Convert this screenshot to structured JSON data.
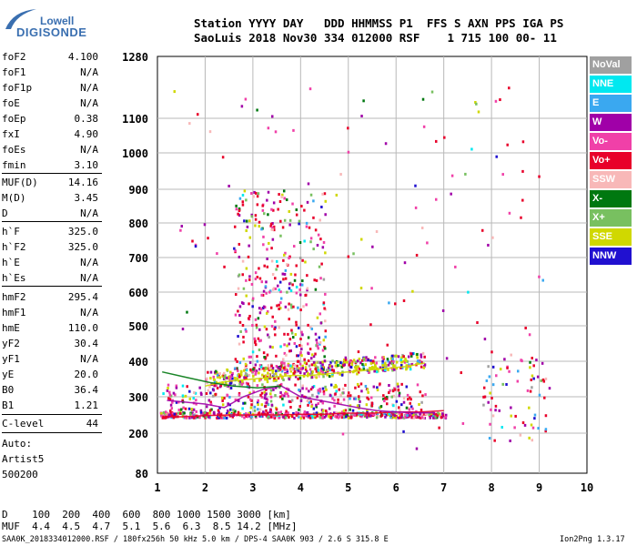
{
  "logo": {
    "line1": "Lowell",
    "line2": "DIGISONDE"
  },
  "header": {
    "line1": "Station YYYY DAY   DDD HHMMSS P1  FFS S AXN PPS IGA PS",
    "line2": "SaoLuis 2018 Nov30 334 012000 RSF    1 715 100 00- 11"
  },
  "params": {
    "group1": [
      {
        "label": "foF2",
        "value": "4.100"
      },
      {
        "label": "foF1",
        "value": "N/A"
      },
      {
        "label": "foF1p",
        "value": "N/A"
      },
      {
        "label": "foE",
        "value": "N/A"
      },
      {
        "label": "foEp",
        "value": "0.38"
      },
      {
        "label": "fxI",
        "value": "4.90"
      },
      {
        "label": "foEs",
        "value": "N/A"
      },
      {
        "label": "fmin",
        "value": "3.10"
      }
    ],
    "group2": [
      {
        "label": "MUF(D)",
        "value": "14.16"
      },
      {
        "label": "M(D)",
        "value": "3.45"
      },
      {
        "label": "D",
        "value": "N/A"
      }
    ],
    "group3": [
      {
        "label": "h`F",
        "value": "325.0"
      },
      {
        "label": "h`F2",
        "value": "325.0"
      },
      {
        "label": "h`E",
        "value": "N/A"
      },
      {
        "label": "h`Es",
        "value": "N/A"
      }
    ],
    "group4": [
      {
        "label": "hmF2",
        "value": "295.4"
      },
      {
        "label": "hmF1",
        "value": "N/A"
      },
      {
        "label": "hmE",
        "value": "110.0"
      },
      {
        "label": "yF2",
        "value": "30.4"
      },
      {
        "label": "yF1",
        "value": "N/A"
      },
      {
        "label": "yE",
        "value": "20.0"
      },
      {
        "label": "B0",
        "value": "36.4"
      },
      {
        "label": "B1",
        "value": "1.21"
      }
    ],
    "clevel": {
      "label": "C-level",
      "value": "44"
    },
    "auto": [
      "Auto:",
      "Artist5",
      "500200"
    ]
  },
  "legend": [
    {
      "label": "NoVal",
      "bg": "#a0a0a0",
      "fg": "#ffffff"
    },
    {
      "label": "NNE",
      "bg": "#00e8f0",
      "fg": "#ffffff"
    },
    {
      "label": "E",
      "bg": "#3aa8f0",
      "fg": "#ffffff"
    },
    {
      "label": "W",
      "bg": "#a000a8",
      "fg": "#ffffff"
    },
    {
      "label": "Vo-",
      "bg": "#f040a8",
      "fg": "#ffffff"
    },
    {
      "label": "Vo+",
      "bg": "#e8002a",
      "fg": "#ffffff"
    },
    {
      "label": "SSW",
      "bg": "#f8b8b8",
      "fg": "#ffffff"
    },
    {
      "label": "X-",
      "bg": "#007810",
      "fg": "#ffffff"
    },
    {
      "label": "X+",
      "bg": "#78c060",
      "fg": "#ffffff"
    },
    {
      "label": "SSE",
      "bg": "#d0d800",
      "fg": "#ffffff"
    },
    {
      "label": "NNW",
      "bg": "#2010d0",
      "fg": "#ffffff"
    }
  ],
  "footer": {
    "d_line": "D    100  200  400  600  800 1000 1500 3000 [km]",
    "muf_line": "MUF  4.4  4.5  4.7  5.1  5.6  6.3  8.5 14.2 [MHz]",
    "file_line": "SAA0K_2018334012000.RSF / 180fx256h 50 kHz 5.0 km / DPS-4 SAA0K 903 / 2.6 S 315.8 E",
    "version": "Ion2Png 1.3.17"
  },
  "chart_data": {
    "type": "scatter",
    "xlim": [
      1,
      10
    ],
    "ylim": [
      80,
      1280
    ],
    "x_ticks": [
      "1",
      "2",
      "3",
      "4",
      "5",
      "6",
      "7",
      "8",
      "9",
      "10"
    ],
    "y_ticks": [
      "80",
      "200",
      "300",
      "400",
      "500",
      "600",
      "700",
      "800",
      "900",
      "1000",
      "1100",
      "1280"
    ],
    "y_tick_values": [
      80,
      200,
      300,
      400,
      500,
      600,
      700,
      800,
      900,
      1000,
      1100,
      1280
    ],
    "grid": true,
    "traces": [
      {
        "name": "SSE",
        "color": "#d0d800",
        "x": [
          2.0,
          2.3,
          2.6,
          3.0,
          3.4,
          3.8,
          4.2,
          4.6,
          5.0,
          5.4,
          5.8,
          6.2,
          6.6
        ],
        "y": [
          330,
          340,
          345,
          350,
          355,
          360,
          360,
          365,
          370,
          375,
          380,
          385,
          395
        ]
      },
      {
        "name": "Vo+",
        "color": "#e8002a",
        "x": [
          1.1,
          1.5,
          2.0,
          2.5,
          3.0,
          3.5,
          4.0,
          4.5,
          5.0,
          5.5,
          6.0,
          6.5,
          7.0
        ],
        "y": [
          245,
          245,
          248,
          250,
          250,
          250,
          252,
          252,
          255,
          255,
          258,
          258,
          262
        ]
      },
      {
        "name": "W",
        "color": "#a000a8",
        "x": [
          1.2,
          1.6,
          2.0,
          2.4,
          2.8,
          3.2,
          3.6,
          4.0,
          4.4,
          4.8,
          5.2,
          5.6,
          6.0,
          6.4,
          6.8
        ],
        "y": [
          290,
          285,
          280,
          270,
          300,
          320,
          330,
          300,
          290,
          280,
          270,
          262,
          258,
          256,
          256
        ]
      },
      {
        "name": "X-",
        "color": "#007810",
        "x": [
          1.1,
          1.6,
          2.1,
          2.6,
          3.1,
          3.6
        ],
        "y": [
          370,
          355,
          340,
          330,
          325,
          330
        ]
      }
    ]
  }
}
